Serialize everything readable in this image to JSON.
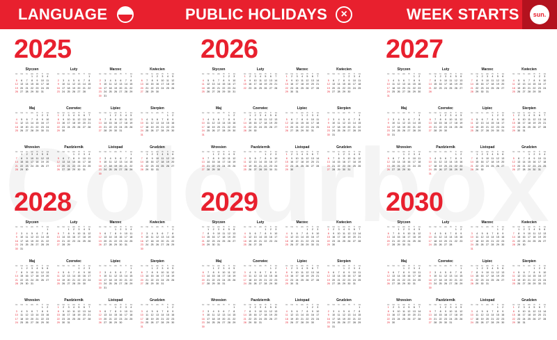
{
  "header": {
    "language_label": "LANGUAGE",
    "holidays_label": "PUBLIC HOLIDAYS",
    "holidays_icon": "×",
    "week_label": "WEEK STARTS",
    "week_value": "sun."
  },
  "watermark": "Colourbox",
  "weekday_labels": [
    "su",
    "mo",
    "tu",
    "we",
    "th",
    "fr",
    "sa"
  ],
  "month_names": [
    "Styczen",
    "Luty",
    "Marzec",
    "Kwiecien",
    "Maj",
    "Czerwiec",
    "Lipiec",
    "Sierpien",
    "Wrzesien",
    "Pazdziernik",
    "Listopad",
    "Grudzien"
  ],
  "years": [
    "2025",
    "2026",
    "2027",
    "2028",
    "2029",
    "2030"
  ],
  "colors": {
    "accent": "#e8202e",
    "accent_dark": "#b3121e"
  }
}
